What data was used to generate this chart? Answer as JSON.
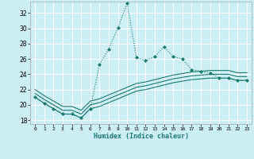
{
  "xlabel": "Humidex (Indice chaleur)",
  "background_color": "#cceef5",
  "grid_color": "#ffffff",
  "line_color": "#1a7a6e",
  "xlim": [
    -0.5,
    23.5
  ],
  "ylim": [
    17.5,
    33.5
  ],
  "yticks": [
    18,
    20,
    22,
    24,
    26,
    28,
    30,
    32
  ],
  "xticks": [
    0,
    1,
    2,
    3,
    4,
    5,
    6,
    7,
    8,
    9,
    10,
    11,
    12,
    13,
    14,
    15,
    16,
    17,
    18,
    19,
    20,
    21,
    22,
    23
  ],
  "main_x": [
    0,
    1,
    2,
    3,
    4,
    5,
    6,
    7,
    8,
    9,
    10,
    11,
    12,
    13,
    14,
    15,
    16,
    17,
    18,
    19,
    20,
    21,
    22,
    23
  ],
  "main_y": [
    21.0,
    20.2,
    19.5,
    18.8,
    18.8,
    18.3,
    19.5,
    25.3,
    27.3,
    30.1,
    33.3,
    26.2,
    25.8,
    26.3,
    27.6,
    26.3,
    26.0,
    24.6,
    24.4,
    24.2,
    23.5,
    23.5,
    23.2,
    23.2
  ],
  "line1_y": [
    21.0,
    20.2,
    19.5,
    18.8,
    18.8,
    18.3,
    19.5,
    19.8,
    20.3,
    20.8,
    21.3,
    21.8,
    22.0,
    22.3,
    22.6,
    22.9,
    23.1,
    23.3,
    23.4,
    23.5,
    23.5,
    23.5,
    23.2,
    23.2
  ],
  "line2_y": [
    21.5,
    20.7,
    20.0,
    19.3,
    19.3,
    18.8,
    20.0,
    20.3,
    20.8,
    21.3,
    21.8,
    22.3,
    22.5,
    22.8,
    23.1,
    23.4,
    23.6,
    23.8,
    23.9,
    24.0,
    24.0,
    24.0,
    23.7,
    23.7
  ],
  "line3_y": [
    22.0,
    21.2,
    20.5,
    19.8,
    19.8,
    19.3,
    20.5,
    20.8,
    21.3,
    21.8,
    22.3,
    22.8,
    23.0,
    23.3,
    23.6,
    23.9,
    24.1,
    24.3,
    24.4,
    24.5,
    24.5,
    24.5,
    24.2,
    24.2
  ]
}
